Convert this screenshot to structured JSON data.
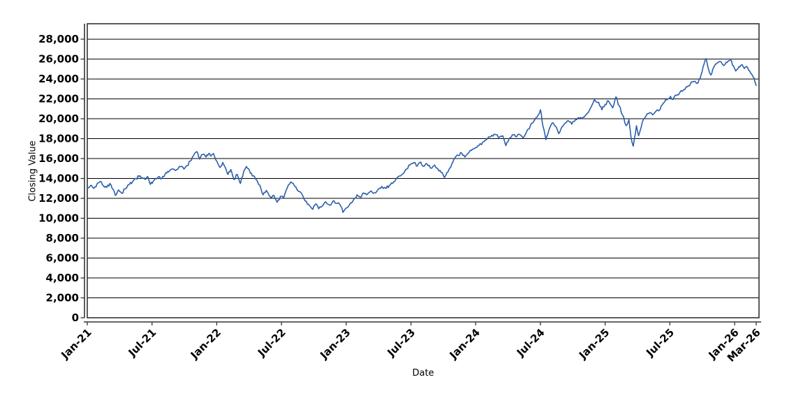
{
  "chart_data": {
    "type": "line",
    "title": "",
    "xlabel": "Date",
    "ylabel": "Closing Value",
    "legend": "none",
    "grid": "horizontal-black-solid",
    "plot_background": "#ffffff",
    "line_color": "#2b5ea9",
    "axis_color": "#333333",
    "grid_color": "#000000",
    "text_color": "#000000",
    "ylim": [
      0,
      29550
    ],
    "xlim_months": [
      0,
      62
    ],
    "x_tick_labels": [
      "Jan-21",
      "Jul-21",
      "Jan-22",
      "Jul-22",
      "Jan-23",
      "Jul-23",
      "Jan-24",
      "Jul-24",
      "Jan-25",
      "Jul-25",
      "Jan-26",
      "Mar-26"
    ],
    "x_tick_months": [
      0,
      6,
      12,
      18,
      24,
      30,
      36,
      42,
      48,
      54,
      60,
      62
    ],
    "y_tick_values": [
      0,
      2000,
      4000,
      6000,
      8000,
      10000,
      12000,
      14000,
      16000,
      18000,
      20000,
      22000,
      24000,
      26000,
      28000
    ],
    "y_tick_labels": [
      "0",
      "2,000",
      "4,000",
      "6,000",
      "8,000",
      "10,000",
      "12,000",
      "14,000",
      "16,000",
      "18,000",
      "20,000",
      "22,000",
      "24,000",
      "26,000",
      "28,000"
    ],
    "series": [
      {
        "name": "Closing Value",
        "x_unit": "months since Jan-2021",
        "points": [
          [
            0,
            12950
          ],
          [
            0.3,
            13300
          ],
          [
            0.6,
            13000
          ],
          [
            0.9,
            13450
          ],
          [
            1.2,
            13700
          ],
          [
            1.5,
            13250
          ],
          [
            1.8,
            13100
          ],
          [
            2.1,
            13500
          ],
          [
            2.4,
            12900
          ],
          [
            2.6,
            12300
          ],
          [
            2.9,
            12850
          ],
          [
            3.2,
            12500
          ],
          [
            3.5,
            12950
          ],
          [
            3.9,
            13400
          ],
          [
            4.2,
            13700
          ],
          [
            4.5,
            14000
          ],
          [
            4.8,
            14200
          ],
          [
            5.1,
            14050
          ],
          [
            5.35,
            13900
          ],
          [
            5.6,
            14200
          ],
          [
            5.85,
            13400
          ],
          [
            6.1,
            13700
          ],
          [
            6.4,
            13950
          ],
          [
            6.65,
            14200
          ],
          [
            6.9,
            14000
          ],
          [
            7.2,
            14400
          ],
          [
            7.45,
            14700
          ],
          [
            7.7,
            14850
          ],
          [
            7.95,
            14950
          ],
          [
            8.2,
            14800
          ],
          [
            8.45,
            15050
          ],
          [
            8.7,
            15200
          ],
          [
            8.95,
            14950
          ],
          [
            9.25,
            15300
          ],
          [
            9.55,
            15750
          ],
          [
            9.85,
            16300
          ],
          [
            10.15,
            16700
          ],
          [
            10.4,
            15950
          ],
          [
            10.7,
            16400
          ],
          [
            11,
            16150
          ],
          [
            11.25,
            16500
          ],
          [
            11.45,
            16250
          ],
          [
            11.7,
            16500
          ],
          [
            12,
            15750
          ],
          [
            12.3,
            15100
          ],
          [
            12.55,
            15600
          ],
          [
            12.8,
            15100
          ],
          [
            13.05,
            14400
          ],
          [
            13.3,
            14900
          ],
          [
            13.6,
            13900
          ],
          [
            13.9,
            14400
          ],
          [
            14.2,
            13500
          ],
          [
            14.5,
            14700
          ],
          [
            14.75,
            15200
          ],
          [
            15.05,
            14750
          ],
          [
            15.3,
            14250
          ],
          [
            15.6,
            13950
          ],
          [
            16,
            13300
          ],
          [
            16.3,
            12350
          ],
          [
            16.6,
            12800
          ],
          [
            17,
            12100
          ],
          [
            17.3,
            12300
          ],
          [
            17.6,
            11600
          ],
          [
            17.9,
            12200
          ],
          [
            18.2,
            12000
          ],
          [
            18.55,
            13100
          ],
          [
            18.85,
            13650
          ],
          [
            19.2,
            13250
          ],
          [
            19.6,
            12700
          ],
          [
            20,
            12200
          ],
          [
            20.3,
            11700
          ],
          [
            20.6,
            11250
          ],
          [
            20.9,
            10900
          ],
          [
            21.2,
            11450
          ],
          [
            21.45,
            10950
          ],
          [
            21.8,
            11250
          ],
          [
            22.1,
            11650
          ],
          [
            22.5,
            11300
          ],
          [
            22.8,
            11750
          ],
          [
            23.05,
            11500
          ],
          [
            23.4,
            11400
          ],
          [
            23.7,
            10600
          ],
          [
            24.05,
            11050
          ],
          [
            24.4,
            11550
          ],
          [
            24.7,
            11900
          ],
          [
            25,
            12350
          ],
          [
            25.3,
            12100
          ],
          [
            25.6,
            12550
          ],
          [
            25.9,
            12350
          ],
          [
            26.3,
            12750
          ],
          [
            26.6,
            12550
          ],
          [
            27,
            12950
          ],
          [
            27.3,
            13200
          ],
          [
            27.7,
            13000
          ],
          [
            28,
            13300
          ],
          [
            28.3,
            13500
          ],
          [
            28.6,
            13900
          ],
          [
            28.9,
            14250
          ],
          [
            29.3,
            14500
          ],
          [
            29.6,
            14950
          ],
          [
            29.9,
            15350
          ],
          [
            30.3,
            15600
          ],
          [
            30.6,
            15250
          ],
          [
            30.9,
            15650
          ],
          [
            31.2,
            15200
          ],
          [
            31.5,
            15450
          ],
          [
            31.8,
            15050
          ],
          [
            32.2,
            15350
          ],
          [
            32.5,
            14950
          ],
          [
            32.8,
            14600
          ],
          [
            33.1,
            14100
          ],
          [
            33.45,
            14700
          ],
          [
            33.8,
            15500
          ],
          [
            34.1,
            16100
          ],
          [
            34.4,
            16300
          ],
          [
            34.7,
            16550
          ],
          [
            35,
            16150
          ],
          [
            35.4,
            16650
          ],
          [
            35.7,
            16950
          ],
          [
            36,
            17100
          ],
          [
            36.3,
            17300
          ],
          [
            36.65,
            17650
          ],
          [
            37,
            17900
          ],
          [
            37.3,
            18150
          ],
          [
            37.6,
            18250
          ],
          [
            37.9,
            18400
          ],
          [
            38.2,
            18150
          ],
          [
            38.5,
            18300
          ],
          [
            38.8,
            17300
          ],
          [
            39.1,
            18000
          ],
          [
            39.4,
            18400
          ],
          [
            39.7,
            18200
          ],
          [
            40,
            18450
          ],
          [
            40.4,
            18050
          ],
          [
            40.8,
            18900
          ],
          [
            41.3,
            19600
          ],
          [
            41.7,
            20200
          ],
          [
            42,
            20900
          ],
          [
            42.25,
            19200
          ],
          [
            42.5,
            17900
          ],
          [
            42.8,
            18900
          ],
          [
            43.1,
            19600
          ],
          [
            43.4,
            19250
          ],
          [
            43.7,
            18500
          ],
          [
            44,
            19200
          ],
          [
            44.3,
            19550
          ],
          [
            44.6,
            19800
          ],
          [
            44.9,
            19450
          ],
          [
            45.25,
            19900
          ],
          [
            45.6,
            20050
          ],
          [
            45.95,
            20150
          ],
          [
            46.3,
            20500
          ],
          [
            46.7,
            21200
          ],
          [
            47,
            21950
          ],
          [
            47.4,
            21650
          ],
          [
            47.7,
            20900
          ],
          [
            48,
            21450
          ],
          [
            48.3,
            21800
          ],
          [
            48.7,
            21100
          ],
          [
            49,
            22200
          ],
          [
            49.3,
            21300
          ],
          [
            49.6,
            20400
          ],
          [
            49.95,
            19300
          ],
          [
            50.2,
            19900
          ],
          [
            50.4,
            18100
          ],
          [
            50.6,
            17250
          ],
          [
            50.9,
            19300
          ],
          [
            51.1,
            18300
          ],
          [
            51.45,
            19700
          ],
          [
            51.8,
            20300
          ],
          [
            52.1,
            20600
          ],
          [
            52.4,
            20400
          ],
          [
            52.7,
            20750
          ],
          [
            53.1,
            20950
          ],
          [
            53.4,
            21600
          ],
          [
            53.7,
            21900
          ],
          [
            54.05,
            22250
          ],
          [
            54.3,
            21950
          ],
          [
            54.6,
            22350
          ],
          [
            54.9,
            22600
          ],
          [
            55.3,
            22950
          ],
          [
            55.6,
            23200
          ],
          [
            55.9,
            23500
          ],
          [
            56.2,
            23750
          ],
          [
            56.6,
            23600
          ],
          [
            56.9,
            24450
          ],
          [
            57.15,
            25450
          ],
          [
            57.35,
            26050
          ],
          [
            57.5,
            25300
          ],
          [
            57.8,
            24400
          ],
          [
            58.05,
            25150
          ],
          [
            58.4,
            25600
          ],
          [
            58.6,
            25750
          ],
          [
            59,
            25350
          ],
          [
            59.3,
            25650
          ],
          [
            59.6,
            25900
          ],
          [
            59.9,
            25300
          ],
          [
            60.1,
            24800
          ],
          [
            60.4,
            25250
          ],
          [
            60.6,
            25400
          ],
          [
            60.9,
            25050
          ],
          [
            61.2,
            25150
          ],
          [
            61.4,
            24800
          ],
          [
            61.6,
            24450
          ],
          [
            61.8,
            24100
          ],
          [
            61.9,
            23650
          ],
          [
            62,
            23350
          ]
        ]
      }
    ]
  }
}
